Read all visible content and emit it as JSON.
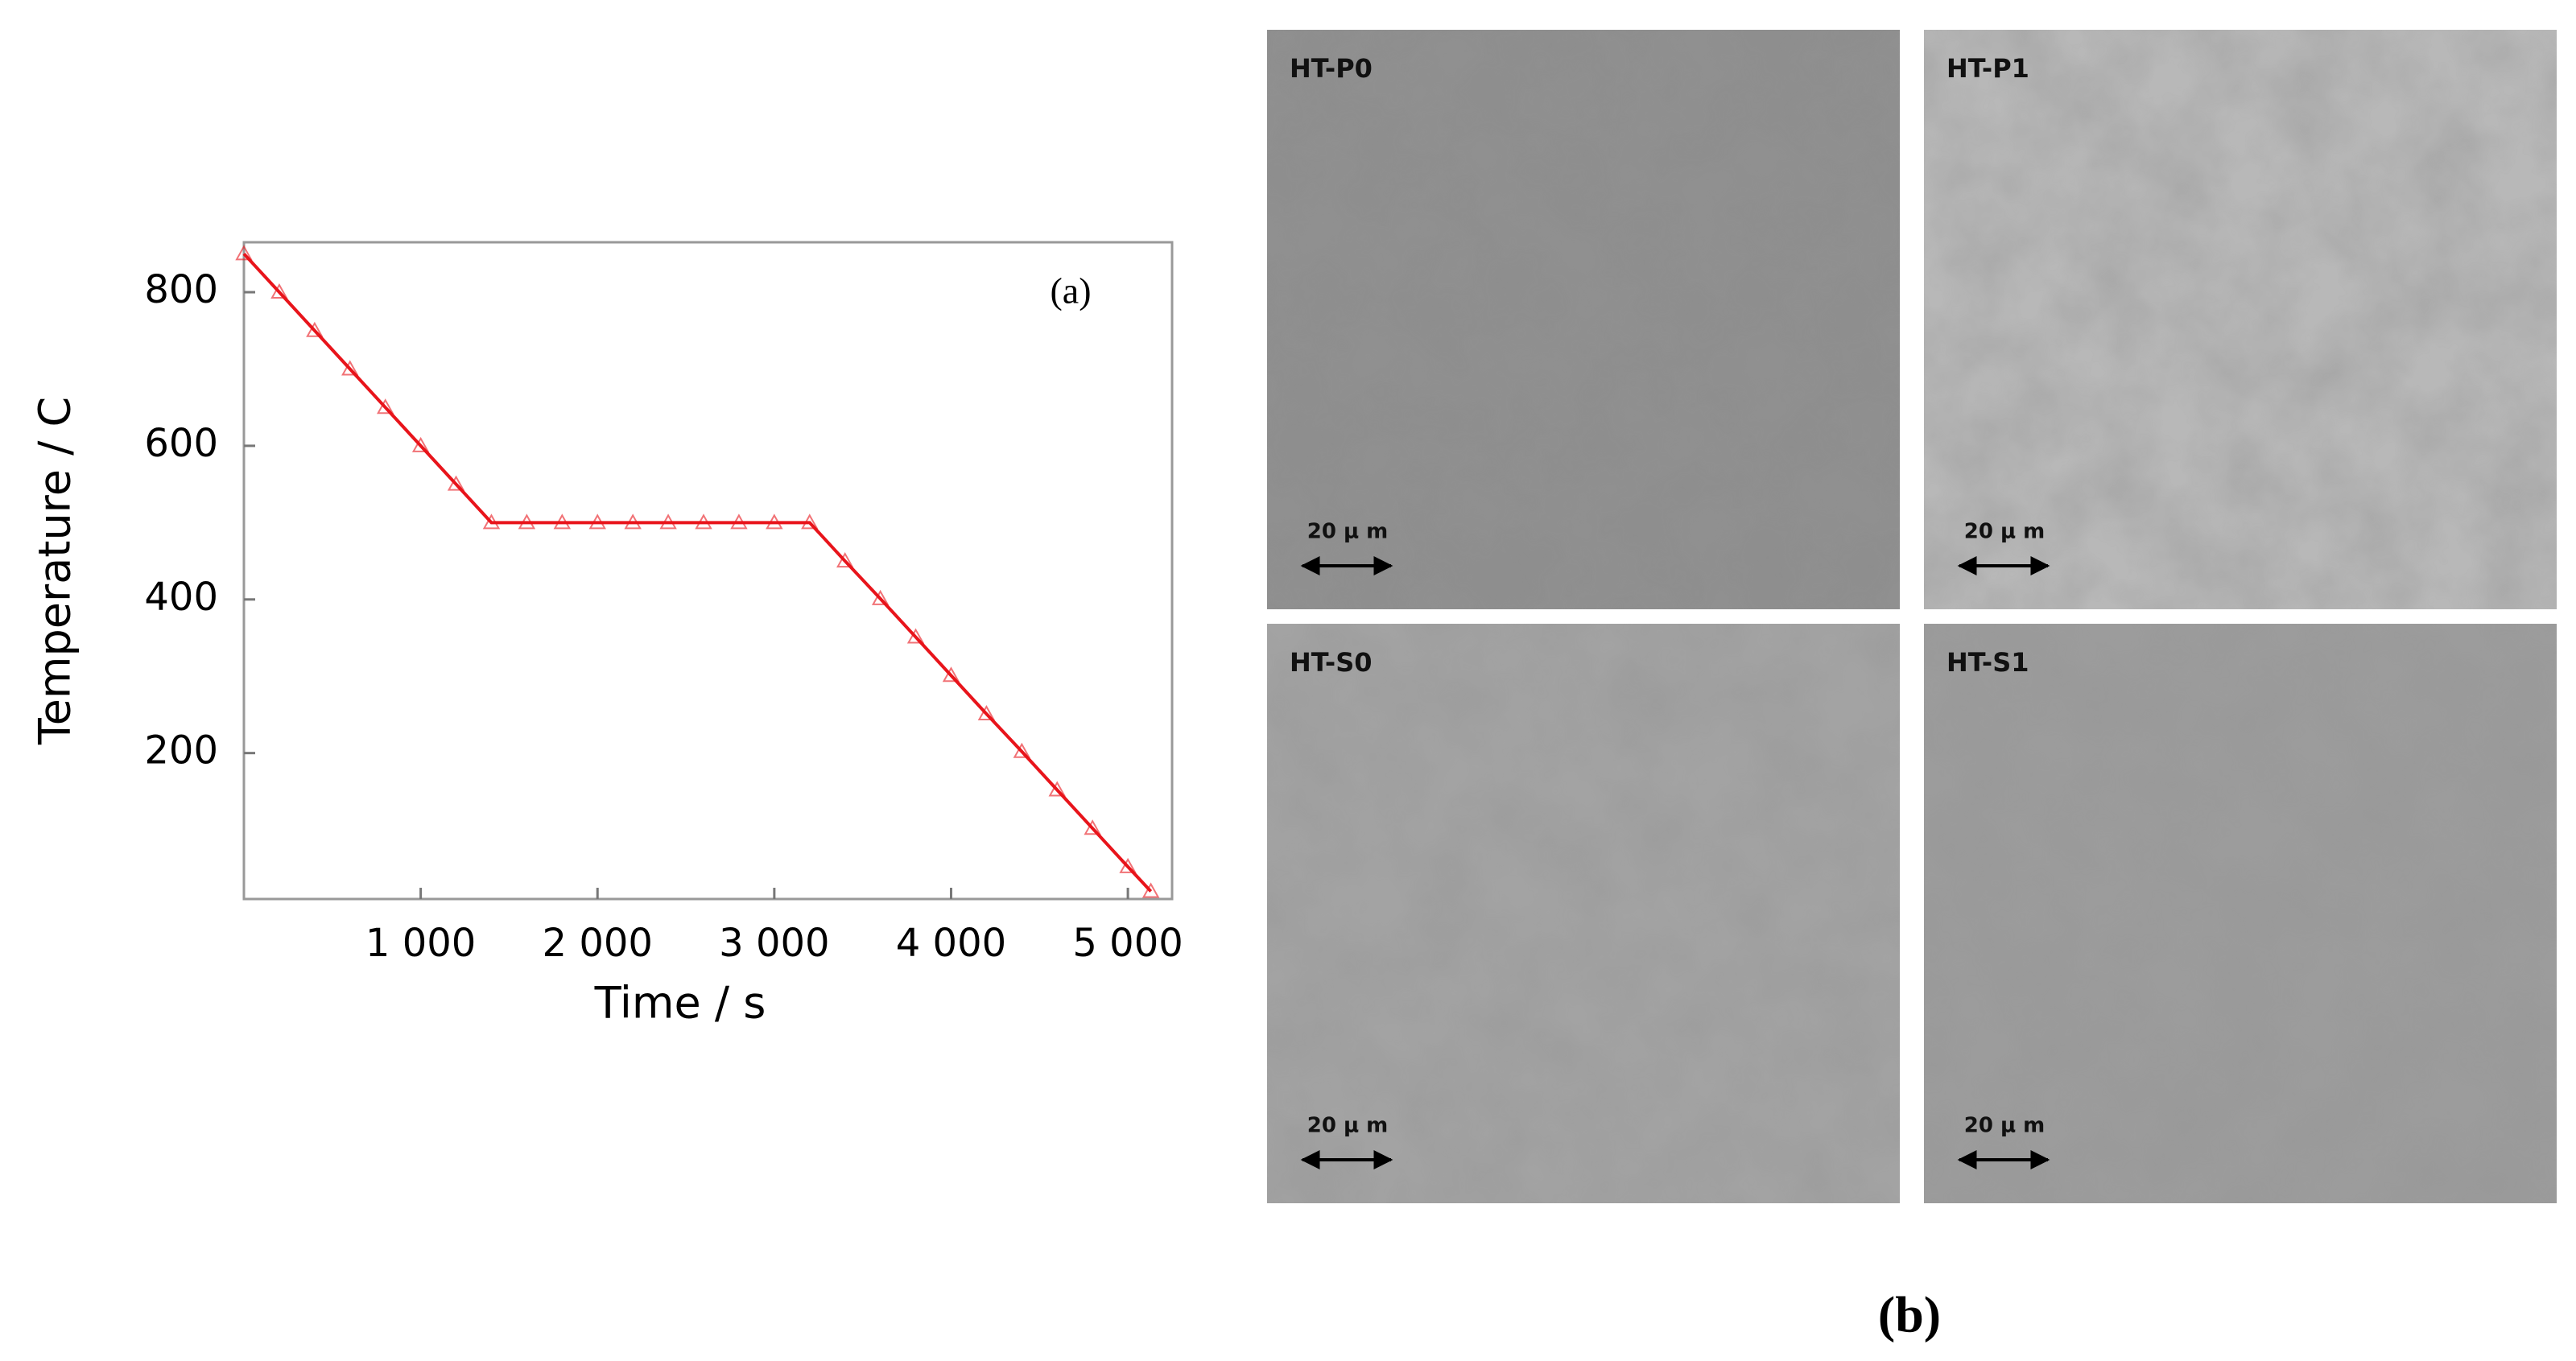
{
  "chart_data": {
    "type": "line",
    "annotation": "(a)",
    "x_label": "Time / s",
    "y_label": "Temperature / C",
    "x": [
      0,
      200,
      400,
      600,
      800,
      1000,
      1200,
      1400,
      1600,
      1800,
      2000,
      2200,
      2400,
      2600,
      2800,
      3000,
      3200,
      3400,
      3600,
      3800,
      4000,
      4200,
      4400,
      4600,
      4800,
      5000,
      5130
    ],
    "values": [
      850,
      800,
      750,
      700,
      650,
      600,
      550,
      500,
      500,
      500,
      500,
      500,
      500,
      500,
      500,
      500,
      500,
      450,
      401,
      351,
      301,
      251,
      202,
      152,
      102,
      52,
      20
    ],
    "color": "#e8141b",
    "xlim": [
      0,
      5250
    ],
    "ylim": [
      10,
      865
    ],
    "xticks": [
      {
        "value": 1000,
        "label": "1 000"
      },
      {
        "value": 2000,
        "label": "2 000"
      },
      {
        "value": 3000,
        "label": "3 000"
      },
      {
        "value": 4000,
        "label": "4 000"
      },
      {
        "value": 5000,
        "label": "5 000"
      }
    ],
    "yticks": [
      200,
      400,
      600,
      800
    ],
    "grid": false
  },
  "micrographs": {
    "panel_label": "(b)",
    "panels": [
      {
        "label": "HT-P0",
        "scale_bar": "20 μ m"
      },
      {
        "label": "HT-P1",
        "scale_bar": "20 μ m"
      },
      {
        "label": "HT-S0",
        "scale_bar": "20 μ m"
      },
      {
        "label": "HT-S1",
        "scale_bar": "20 μ m"
      }
    ]
  }
}
